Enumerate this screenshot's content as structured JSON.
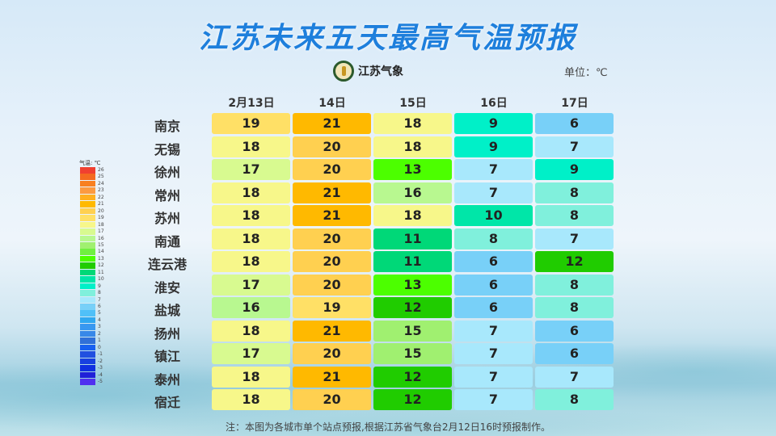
{
  "title": "江苏未来五天最高气温预报",
  "logo_text": "江苏气象",
  "unit": "单位：℃",
  "note": "注：本图为各城市单个站点预报,根据江苏省气象台2月12日16时预报制作。",
  "chart_data": {
    "type": "heatmap",
    "title": "江苏未来五天最高气温预报",
    "columns": [
      "2月13日",
      "14日",
      "15日",
      "16日",
      "17日"
    ],
    "rows": [
      "南京",
      "无锡",
      "徐州",
      "常州",
      "苏州",
      "南通",
      "连云港",
      "淮安",
      "盐城",
      "扬州",
      "镇江",
      "泰州",
      "宿迁"
    ],
    "values": [
      [
        19,
        21,
        18,
        9,
        6
      ],
      [
        18,
        20,
        18,
        9,
        7
      ],
      [
        17,
        20,
        13,
        7,
        9
      ],
      [
        18,
        21,
        16,
        7,
        8
      ],
      [
        18,
        21,
        18,
        10,
        8
      ],
      [
        18,
        20,
        11,
        8,
        7
      ],
      [
        18,
        20,
        11,
        6,
        12
      ],
      [
        17,
        20,
        13,
        6,
        8
      ],
      [
        16,
        19,
        12,
        6,
        8
      ],
      [
        18,
        21,
        15,
        7,
        6
      ],
      [
        17,
        20,
        15,
        7,
        6
      ],
      [
        18,
        21,
        12,
        7,
        7
      ],
      [
        18,
        20,
        12,
        7,
        8
      ]
    ],
    "legend": {
      "title": "气温: ℃",
      "levels": [
        26,
        25,
        24,
        23,
        22,
        21,
        20,
        19,
        18,
        17,
        16,
        15,
        14,
        13,
        12,
        11,
        10,
        9,
        8,
        7,
        6,
        5,
        4,
        3,
        2,
        1,
        0,
        -1,
        -2,
        -3,
        -4,
        -5
      ],
      "colors": [
        "#f04030",
        "#f46a20",
        "#f88020",
        "#fc9a40",
        "#ffb020",
        "#ffb900",
        "#ffd050",
        "#ffe066",
        "#f7f78a",
        "#d8fa90",
        "#b8f890",
        "#a0f070",
        "#70f040",
        "#4cff00",
        "#20cc00",
        "#00d878",
        "#00e6a8",
        "#00f0c8",
        "#80f0dc",
        "#a8e8fc",
        "#78d0f8",
        "#50c0f8",
        "#30a8f0",
        "#3898f0",
        "#3888e8",
        "#3070d8",
        "#1860f0",
        "#2050e0",
        "#1840e0",
        "#1030e0",
        "#2020d8",
        "#5030f0"
      ]
    }
  }
}
